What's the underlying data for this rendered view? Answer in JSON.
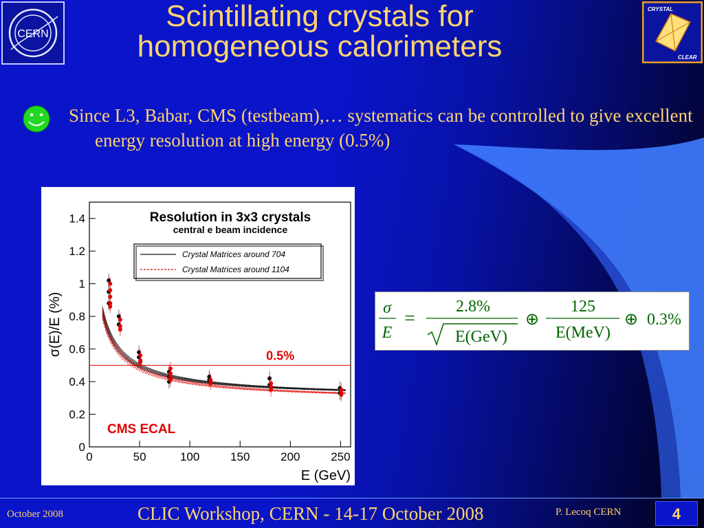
{
  "slide": {
    "title_line1": "Scintillating crystals for",
    "title_line2": "homogeneous calorimeters",
    "bullet_text": "Since L3, Babar, CMS (testbeam),… systematics can be controlled to give excellent energy resolution at high energy (0.5%)"
  },
  "logos": {
    "cern_text": "CERN",
    "crystal_clear_top": "CRYSTAL",
    "crystal_clear_bottom": "CLEAR"
  },
  "colors": {
    "title": "#ffd36e",
    "background": "#0a14c8",
    "formula_text": "#006400",
    "reference_line": "#e00000",
    "matrix704": "#111111",
    "matrix1104": "#e00000"
  },
  "formula": {
    "lhs_num": "σ",
    "lhs_den": "E",
    "equals": "=",
    "stoch_num": "2.8%",
    "stoch_den": "E(GeV)",
    "oplus": "⊕",
    "noise_num": "125",
    "noise_den": "E(MeV)",
    "constant": "0.3%"
  },
  "chart_data": {
    "type": "scatter",
    "title": "Resolution in 3x3 crystals",
    "subtitle": "central e beam incidence",
    "xlabel": "E (GeV)",
    "ylabel": "σ(E)/E (%)",
    "xlim": [
      0,
      260
    ],
    "ylim": [
      0,
      1.5
    ],
    "xticks": [
      0,
      50,
      100,
      150,
      200,
      250
    ],
    "yticks": [
      0,
      0.2,
      0.4,
      0.6,
      0.8,
      1,
      1.2,
      1.4
    ],
    "legend_position": "top-right",
    "reference_line": {
      "y": 0.5,
      "label": "0.5%"
    },
    "annotation": "CMS ECAL",
    "series": [
      {
        "name": "Crystal Matrices around 704",
        "color": "#111111",
        "dash": "solid",
        "curve": {
          "a": 2.8,
          "b": 0.125,
          "c": 0.3
        },
        "points": [
          [
            20,
            1.02
          ],
          [
            20,
            0.95
          ],
          [
            20,
            0.88
          ],
          [
            30,
            0.8
          ],
          [
            30,
            0.75
          ],
          [
            50,
            0.58
          ],
          [
            50,
            0.55
          ],
          [
            80,
            0.46
          ],
          [
            80,
            0.43
          ],
          [
            80,
            0.4
          ],
          [
            120,
            0.43
          ],
          [
            120,
            0.41
          ],
          [
            180,
            0.42
          ],
          [
            180,
            0.38
          ],
          [
            250,
            0.36
          ],
          [
            250,
            0.33
          ]
        ]
      },
      {
        "name": "Crystal Matrices around 1104",
        "color": "#e00000",
        "dash": "dashed",
        "curve": {
          "a": 2.75,
          "b": 0.12,
          "c": 0.28
        },
        "points": [
          [
            20,
            1.0
          ],
          [
            20,
            0.96
          ],
          [
            20,
            0.92
          ],
          [
            20,
            0.88
          ],
          [
            20,
            0.86
          ],
          [
            30,
            0.78
          ],
          [
            30,
            0.74
          ],
          [
            30,
            0.72
          ],
          [
            50,
            0.56
          ],
          [
            50,
            0.53
          ],
          [
            50,
            0.52
          ],
          [
            80,
            0.48
          ],
          [
            80,
            0.45
          ],
          [
            80,
            0.43
          ],
          [
            80,
            0.41
          ],
          [
            120,
            0.41
          ],
          [
            120,
            0.39
          ],
          [
            180,
            0.39
          ],
          [
            180,
            0.37
          ],
          [
            180,
            0.35
          ],
          [
            250,
            0.35
          ],
          [
            250,
            0.33
          ],
          [
            250,
            0.32
          ]
        ]
      }
    ]
  },
  "footer": {
    "date": "October 2008",
    "event": "CLIC Workshop, CERN - 14-17 October 2008",
    "author": "P. Lecoq  CERN",
    "page": "4"
  }
}
